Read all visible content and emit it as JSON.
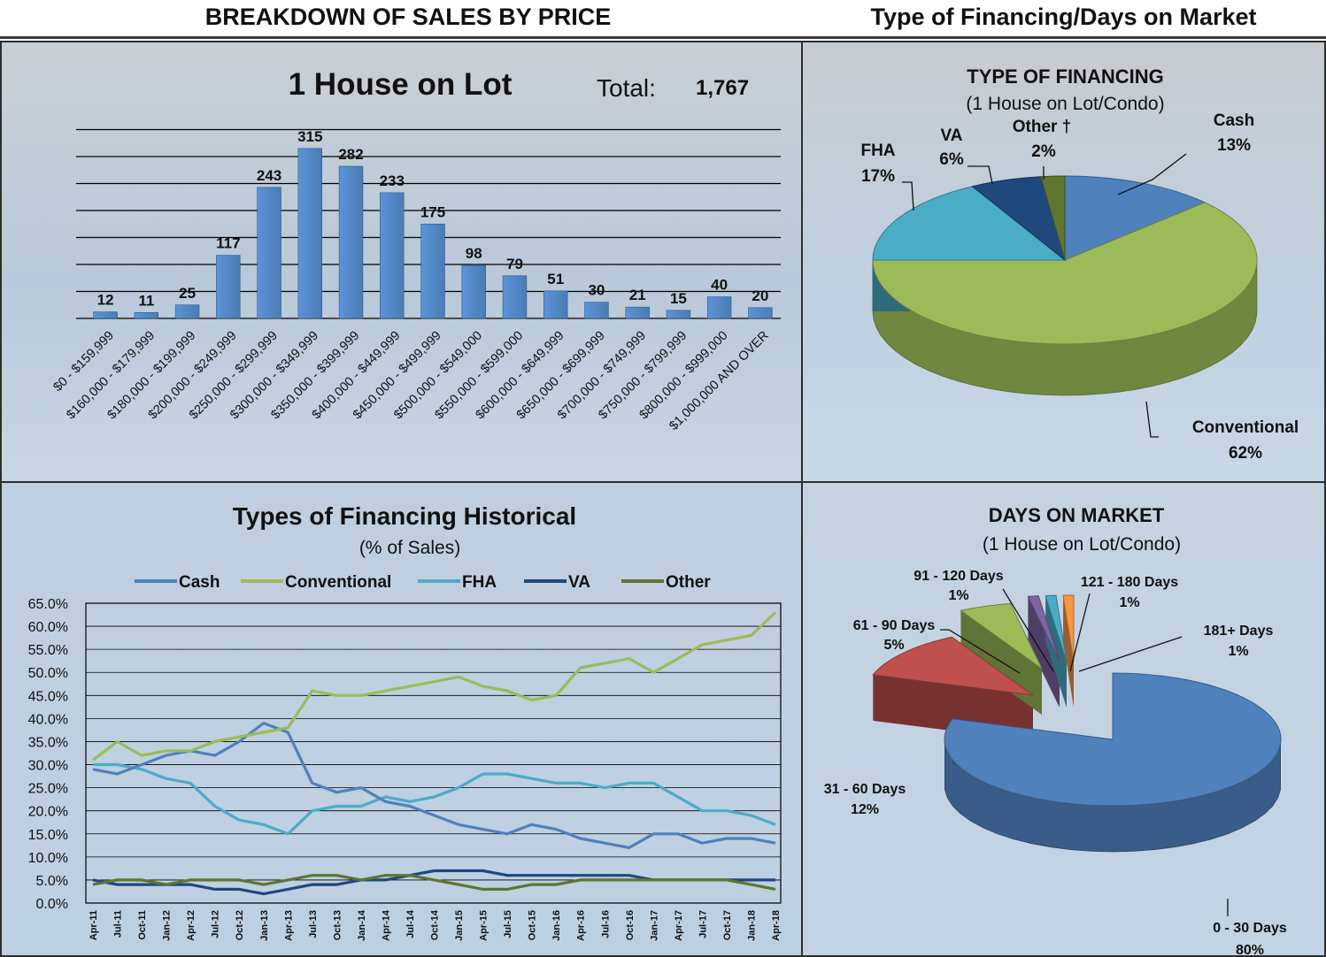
{
  "header": {
    "left_title": "BREAKDOWN OF SALES BY PRICE",
    "right_title": "Type of Financing/Days on Market"
  },
  "colors": {
    "bar_fill": "#4f81bd",
    "cash": "#4f81bd",
    "conventional": "#9bbb59",
    "fha": "#4bacc6",
    "va": "#1f497d",
    "other": "#5f7530",
    "dom_0_30": "#4f81bd",
    "dom_31_60": "#c0504d",
    "dom_61_90": "#9bbb59",
    "dom_91_120": "#8064a2",
    "dom_121_180": "#4bacc6",
    "dom_181": "#f79646"
  },
  "chart_data": [
    {
      "type": "bar",
      "title": "1 House on Lot",
      "total_label": "Total:",
      "total_value": "1,767",
      "categories": [
        "$0 - $159,999",
        "$160,000 - $179,999",
        "$180,000 - $199,999",
        "$200,000 - $249,999",
        "$250,000 - $299,999",
        "$300,000 - $349,999",
        "$350,000 - $399,999",
        "$400,000 - $449,999",
        "$450,000 - $499,999",
        "$500,000 - $549,000",
        "$550,000 - $599,000",
        "$600,000 - $649,999",
        "$650,000 - $699,999",
        "$700,000 - $749,999",
        "$750,000 - $799,999",
        "$800,000 - $999,000",
        "$1,000,000 AND OVER"
      ],
      "values": [
        12,
        11,
        25,
        117,
        243,
        315,
        282,
        233,
        175,
        98,
        79,
        51,
        30,
        21,
        15,
        40,
        20
      ],
      "ylim": [
        0,
        350
      ],
      "grid": true
    },
    {
      "type": "pie",
      "title": "TYPE OF FINANCING",
      "subtitle": "(1 House on Lot/Condo)",
      "slices": [
        {
          "label": "Cash",
          "pct_label": "13%",
          "value": 13
        },
        {
          "label": "Conventional",
          "pct_label": "62%",
          "value": 62
        },
        {
          "label": "FHA",
          "pct_label": "17%",
          "value": 17
        },
        {
          "label": "VA",
          "pct_label": "6%",
          "value": 6
        },
        {
          "label": "Other †",
          "pct_label": "2%",
          "value": 2
        }
      ]
    },
    {
      "type": "line",
      "title": "Types of Financing Historical",
      "subtitle": "(% of Sales)",
      "ylim": [
        0,
        65
      ],
      "ytick_labels": [
        "0.0%",
        "5.0%",
        "10.0%",
        "15.0%",
        "20.0%",
        "25.0%",
        "30.0%",
        "35.0%",
        "40.0%",
        "45.0%",
        "50.0%",
        "55.0%",
        "60.0%",
        "65.0%"
      ],
      "xtick_labels": [
        "Apr-11",
        "Jul-11",
        "Oct-11",
        "Jan-12",
        "Apr-12",
        "Jul-12",
        "Oct-12",
        "Jan-13",
        "Apr-13",
        "Jul-13",
        "Oct-13",
        "Jan-14",
        "Apr-14",
        "Jul-14",
        "Oct-14",
        "Jan-15",
        "Apr-15",
        "Jul-15",
        "Oct-15",
        "Jan-16",
        "Apr-16",
        "Jul-16",
        "Oct-16",
        "Jan-17",
        "Apr-17",
        "Jul-17",
        "Oct-17",
        "Jan-18",
        "Apr-18"
      ],
      "legend_position": "top",
      "series": [
        {
          "name": "Cash",
          "values": [
            29,
            28,
            30,
            32,
            33,
            32,
            35,
            39,
            37,
            26,
            24,
            25,
            22,
            21,
            19,
            17,
            16,
            15,
            17,
            16,
            14,
            13,
            12,
            15,
            15,
            13,
            14,
            14,
            13
          ]
        },
        {
          "name": "Conventional",
          "values": [
            31,
            35,
            32,
            33,
            33,
            35,
            36,
            37,
            38,
            46,
            45,
            45,
            46,
            47,
            48,
            49,
            47,
            46,
            44,
            45,
            51,
            52,
            53,
            50,
            53,
            56,
            57,
            58,
            63
          ]
        },
        {
          "name": "FHA",
          "values": [
            30,
            30,
            29,
            27,
            26,
            21,
            18,
            17,
            15,
            20,
            21,
            21,
            23,
            22,
            23,
            25,
            28,
            28,
            27,
            26,
            26,
            25,
            26,
            26,
            23,
            20,
            20,
            19,
            17
          ]
        },
        {
          "name": "VA",
          "values": [
            5,
            4,
            4,
            4,
            4,
            3,
            3,
            2,
            3,
            4,
            4,
            5,
            5,
            6,
            7,
            7,
            7,
            6,
            6,
            6,
            6,
            6,
            6,
            5,
            5,
            5,
            5,
            5,
            5
          ]
        },
        {
          "name": "Other",
          "values": [
            4,
            5,
            5,
            4,
            5,
            5,
            5,
            4,
            5,
            6,
            6,
            5,
            6,
            6,
            5,
            4,
            3,
            3,
            4,
            4,
            5,
            5,
            5,
            5,
            5,
            5,
            5,
            4,
            3
          ]
        }
      ]
    },
    {
      "type": "pie",
      "title": "DAYS ON MARKET",
      "subtitle": "(1 House on Lot/Condo)",
      "slices": [
        {
          "label": "0 - 30 Days",
          "pct_label": "80%",
          "value": 80
        },
        {
          "label": "31 - 60 Days",
          "pct_label": "12%",
          "value": 12
        },
        {
          "label": "61 - 90 Days",
          "pct_label": "5%",
          "value": 5
        },
        {
          "label": "91 - 120 Days",
          "pct_label": "1%",
          "value": 1
        },
        {
          "label": "121 - 180 Days",
          "pct_label": "1%",
          "value": 1
        },
        {
          "label": "181+ Days",
          "pct_label": "1%",
          "value": 1
        }
      ]
    }
  ]
}
